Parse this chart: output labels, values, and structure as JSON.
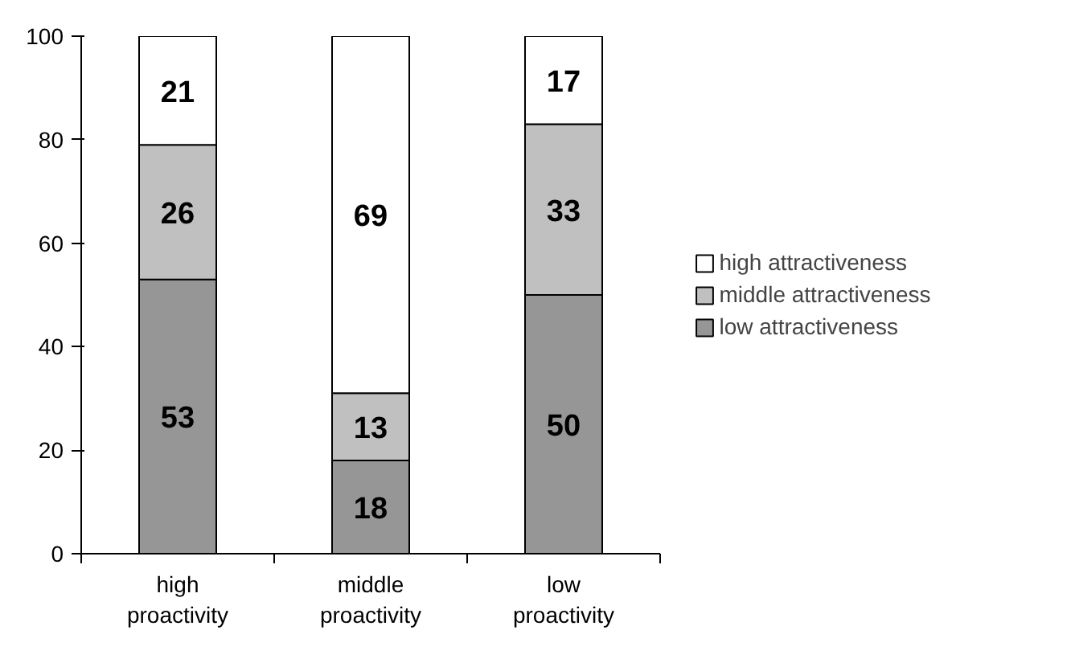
{
  "chart_data": {
    "type": "bar",
    "stacked": true,
    "categories": [
      "high\nproactivity",
      "middle\nproactivity",
      "low\nproactivity"
    ],
    "series": [
      {
        "name": "low attractiveness",
        "color": "#969696",
        "values": [
          53,
          18,
          50
        ]
      },
      {
        "name": "middle attractiveness",
        "color": "#c0c0c0",
        "values": [
          26,
          13,
          33
        ]
      },
      {
        "name": "high attractiveness",
        "color": "#ffffff",
        "values": [
          21,
          69,
          17
        ]
      }
    ],
    "ylim": [
      0,
      100
    ],
    "yticks": [
      0,
      20,
      40,
      60,
      80,
      100
    ],
    "grid": false,
    "legend": "right",
    "data_labels": true
  }
}
